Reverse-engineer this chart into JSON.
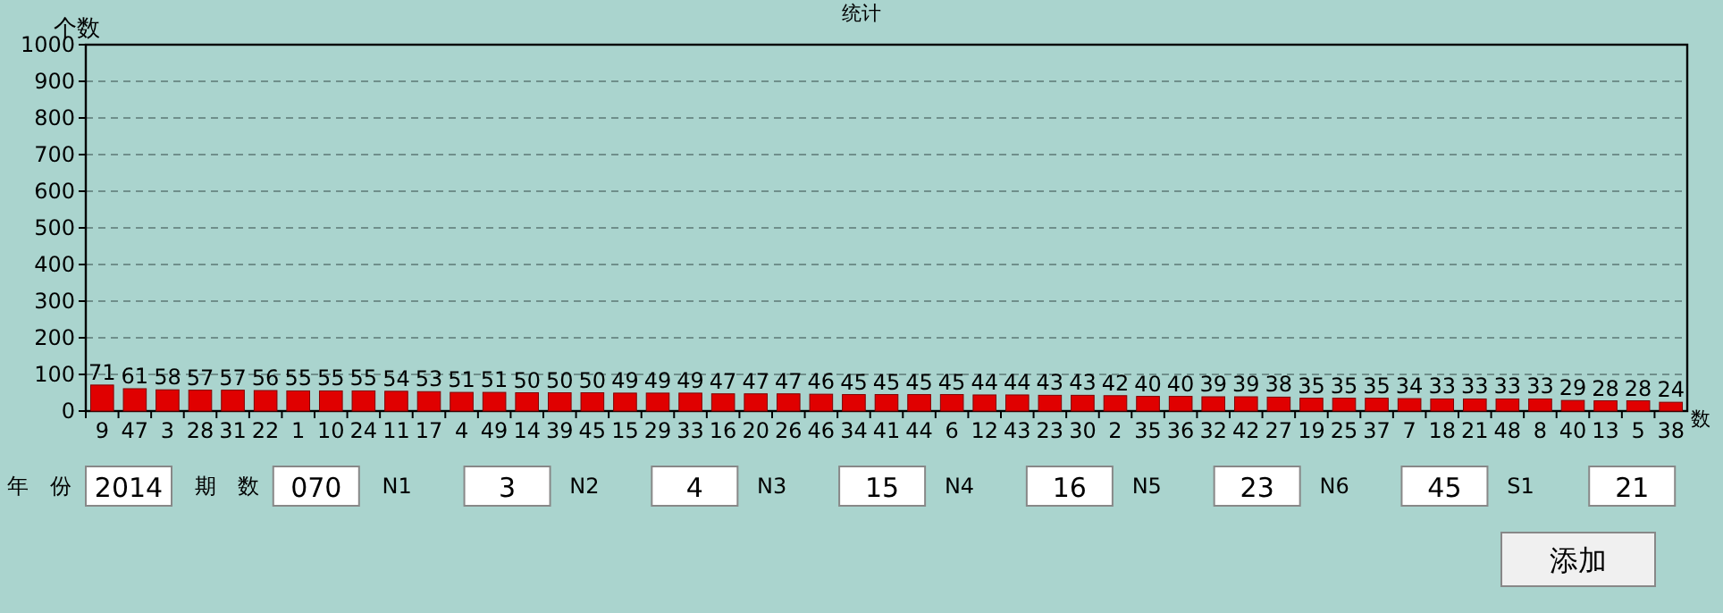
{
  "chart_data": {
    "type": "bar",
    "title": "统计",
    "ylabel": "个数",
    "xlabel": "数",
    "categories": [
      "9",
      "47",
      "3",
      "28",
      "31",
      "22",
      "1",
      "10",
      "24",
      "11",
      "17",
      "4",
      "49",
      "14",
      "39",
      "45",
      "15",
      "29",
      "33",
      "16",
      "20",
      "26",
      "46",
      "34",
      "41",
      "44",
      "6",
      "12",
      "43",
      "23",
      "30",
      "2",
      "35",
      "36",
      "32",
      "42",
      "27",
      "19",
      "25",
      "37",
      "7",
      "18",
      "21",
      "48",
      "8",
      "40",
      "13",
      "5",
      "38"
    ],
    "values": [
      71,
      61,
      58,
      57,
      57,
      56,
      55,
      55,
      55,
      54,
      53,
      51,
      51,
      50,
      50,
      50,
      49,
      49,
      49,
      47,
      47,
      47,
      46,
      45,
      45,
      45,
      45,
      44,
      44,
      43,
      43,
      42,
      40,
      40,
      39,
      39,
      38,
      35,
      35,
      35,
      34,
      33,
      33,
      33,
      33,
      29,
      28,
      28,
      24
    ],
    "color": "#e00000",
    "ylim": [
      0,
      1000
    ],
    "yticks": [
      0,
      100,
      200,
      300,
      400,
      500,
      600,
      700,
      800,
      900,
      1000
    ],
    "grid": "y",
    "data_labels": true,
    "annotations": [
      "年　份",
      "2014",
      "期　数",
      "070",
      "N1",
      "3",
      "N2",
      "4",
      "N3",
      "15",
      "N4",
      "16",
      "N5",
      "23",
      "N6",
      "45",
      "S1",
      "21",
      "添加"
    ]
  }
}
